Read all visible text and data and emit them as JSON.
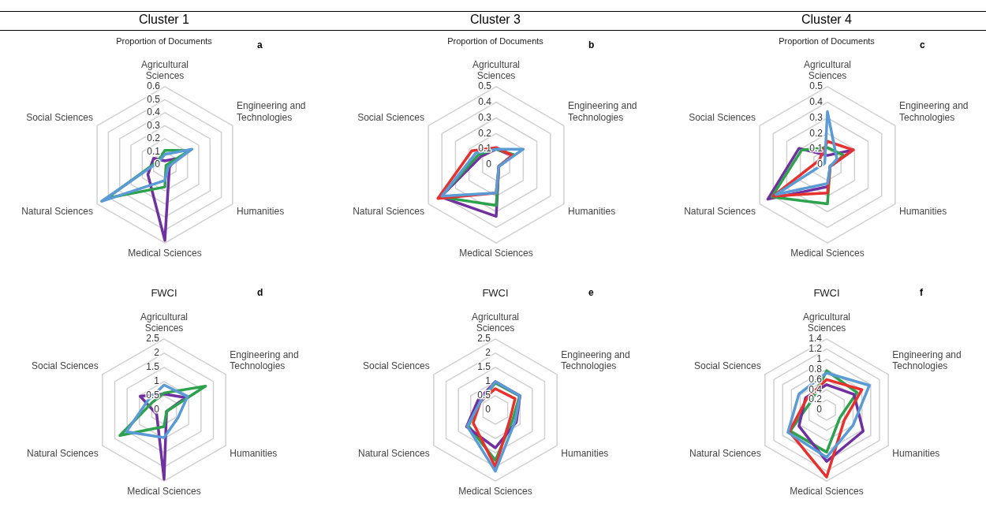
{
  "chart_data": [
    {
      "type": "radar",
      "title": "Cluster 1",
      "subtitle": "Proportion of Documents",
      "annotations": [
        "a"
      ],
      "categories": [
        "Agricultural Sciences",
        "Engineering and Technologies",
        "Humanities",
        "Medical Sciences",
        "Natural Sciences",
        "Social Sciences"
      ],
      "ylim": [
        0,
        0.6
      ],
      "yticks": [
        0,
        0.1,
        0.2,
        0.3,
        0.4,
        0.5,
        0.6
      ],
      "grid": true,
      "marker": "none",
      "line_style": "solid",
      "series": [
        {
          "color": "#5b9bd5",
          "values": [
            0.08,
            0.24,
            0.03,
            0.12,
            0.56,
            0.05
          ]
        },
        {
          "color": "#2ca24c",
          "values": [
            0.11,
            0.22,
            0.01,
            0.17,
            0.51,
            0.06
          ]
        },
        {
          "color": "#7030a0",
          "values": [
            0.03,
            0.09,
            0.04,
            0.58,
            0.15,
            0.1
          ]
        }
      ]
    },
    {
      "type": "radar",
      "title": "Cluster 3",
      "subtitle": "Proportion of Documents",
      "annotations": [
        "b"
      ],
      "categories": [
        "Agricultural Sciences",
        "Engineering and Technologies",
        "Humanities",
        "Medical Sciences",
        "Natural Sciences",
        "Social Sciences"
      ],
      "ylim": [
        0,
        0.5
      ],
      "yticks": [
        0,
        0.1,
        0.2,
        0.3,
        0.4,
        0.5
      ],
      "grid": true,
      "marker": "none",
      "line_style": "solid",
      "series": [
        {
          "color": "#5b9bd5",
          "values": [
            0.1,
            0.2,
            0.02,
            0.18,
            0.4,
            0.15
          ]
        },
        {
          "color": "#e8302e",
          "values": [
            0.11,
            0.12,
            0.02,
            0.18,
            0.43,
            0.18
          ]
        },
        {
          "color": "#2ca24c",
          "values": [
            0.1,
            0.13,
            0.02,
            0.26,
            0.41,
            0.13
          ]
        },
        {
          "color": "#7030a0",
          "values": [
            0.1,
            0.12,
            0.02,
            0.33,
            0.41,
            0.11
          ]
        }
      ]
    },
    {
      "type": "radar",
      "title": "Cluster 4",
      "subtitle": "Proportion of Documents",
      "annotations": [
        "c"
      ],
      "categories": [
        "Agricultural Sciences",
        "Engineering and Technologies",
        "Humanities",
        "Medical Sciences",
        "Natural Sciences",
        "Social Sciences"
      ],
      "ylim": [
        0,
        0.5
      ],
      "yticks": [
        0,
        0.1,
        0.2,
        0.3,
        0.4,
        0.5
      ],
      "grid": true,
      "marker": "none",
      "line_style": "solid",
      "series": [
        {
          "color": "#5b9bd5",
          "values": [
            0.34,
            0.07,
            0.02,
            0.12,
            0.38,
            0.02
          ]
        },
        {
          "color": "#e8302e",
          "values": [
            0.15,
            0.19,
            0.02,
            0.18,
            0.4,
            0.06
          ]
        },
        {
          "color": "#2ca24c",
          "values": [
            0.11,
            0.12,
            0.02,
            0.25,
            0.41,
            0.19
          ]
        },
        {
          "color": "#7030a0",
          "values": [
            0.06,
            0.19,
            0.02,
            0.14,
            0.44,
            0.21
          ]
        }
      ]
    },
    {
      "type": "radar",
      "title": "FWCI",
      "annotations": [
        "d"
      ],
      "categories": [
        "Agricultural Sciences",
        "Engineering and Technologies",
        "Humanities",
        "Medical Sciences",
        "Natural Sciences",
        "Social Sciences"
      ],
      "ylim": [
        0,
        2.5
      ],
      "yticks": [
        0,
        0.5,
        1,
        1.5,
        2,
        2.5
      ],
      "grid": true,
      "marker": "none",
      "line_style": "solid",
      "series": [
        {
          "color": "#5b9bd5",
          "values": [
            0.88,
            0.95,
            0.56,
            0.97,
            1.53,
            0.66
          ]
        },
        {
          "color": "#2ca24c",
          "values": [
            0.6,
            1.68,
            0.1,
            0.58,
            1.79,
            0.5
          ]
        },
        {
          "color": "#7030a0",
          "values": [
            0.56,
            0.87,
            0.1,
            2.43,
            0.3,
            0.97
          ]
        }
      ]
    },
    {
      "type": "radar",
      "title": "FWCI",
      "annotations": [
        "e"
      ],
      "categories": [
        "Agricultural Sciences",
        "Engineering and Technologies",
        "Humanities",
        "Medical Sciences",
        "Natural Sciences",
        "Social Sciences"
      ],
      "ylim": [
        0,
        2.5
      ],
      "yticks": [
        0,
        0.5,
        1,
        1.5,
        2,
        2.5
      ],
      "grid": true,
      "marker": "none",
      "line_style": "solid",
      "series": [
        {
          "color": "#5b9bd5",
          "values": [
            1.0,
            1.0,
            0.8,
            2.15,
            1.14,
            0.6
          ]
        },
        {
          "color": "#e8302e",
          "values": [
            0.75,
            0.8,
            0.6,
            2.0,
            0.9,
            0.6
          ]
        },
        {
          "color": "#7030a0",
          "values": [
            1.0,
            1.0,
            0.85,
            1.33,
            1.17,
            0.7
          ]
        },
        {
          "color": "#2ca24c",
          "values": [
            0.95,
            0.98,
            0.7,
            1.77,
            1.1,
            0.6
          ]
        }
      ]
    },
    {
      "type": "radar",
      "title": "FWCI",
      "annotations": [
        "f"
      ],
      "categories": [
        "Agricultural Sciences",
        "Engineering and Technologies",
        "Humanities",
        "Medical Sciences",
        "Natural Sciences",
        "Social Sciences"
      ],
      "ylim": [
        0,
        1.4
      ],
      "yticks": [
        0,
        0.2,
        0.4,
        0.6,
        0.8,
        1,
        1.2,
        1.4
      ],
      "grid": true,
      "marker": "none",
      "line_style": "solid",
      "series": [
        {
          "color": "#5b9bd5",
          "values": [
            0.73,
            0.97,
            0.6,
            0.93,
            0.88,
            0.63
          ]
        },
        {
          "color": "#e8302e",
          "values": [
            0.6,
            0.8,
            0.4,
            1.32,
            0.85,
            0.45
          ]
        },
        {
          "color": "#7030a0",
          "values": [
            0.5,
            0.62,
            0.83,
            1.01,
            0.63,
            0.48
          ]
        },
        {
          "color": "#2ca24c",
          "values": [
            0.77,
            0.69,
            0.3,
            0.83,
            0.83,
            0.35
          ]
        }
      ]
    }
  ]
}
